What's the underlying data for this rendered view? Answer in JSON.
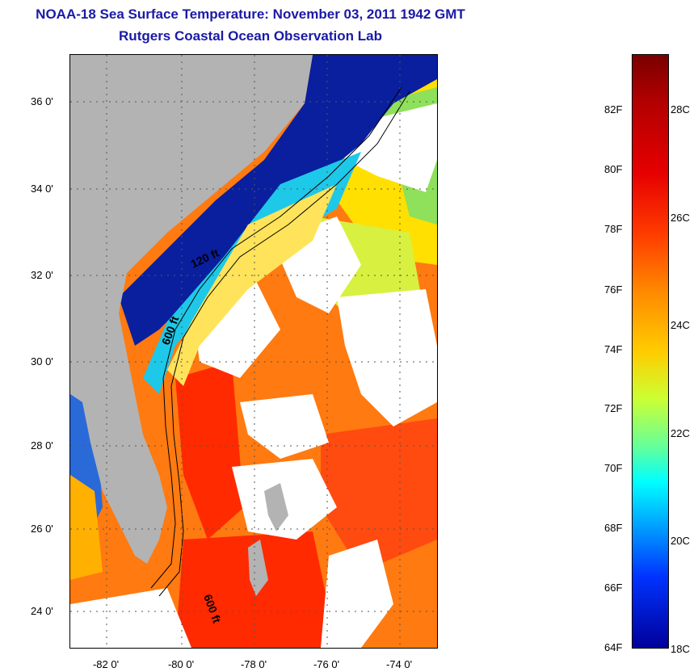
{
  "header": {
    "title": "NOAA-18 Sea Surface Temperature:  November 03, 2011 1942 GMT",
    "subtitle": "Rutgers Coastal Ocean Observation Lab"
  },
  "map": {
    "lat_ticks": [
      "36 0'",
      "34 0'",
      "32 0'",
      "30 0'",
      "28 0'",
      "26 0'",
      "24 0'"
    ],
    "lon_ticks": [
      "-82 0'",
      "-80 0'",
      "-78 0'",
      "-76 0'",
      "-74 0'"
    ],
    "contour_labels": [
      "120 ft",
      "600 ft",
      "600 ft"
    ]
  },
  "colorbar": {
    "fahrenheit": [
      "82F",
      "80F",
      "78F",
      "76F",
      "74F",
      "72F",
      "70F",
      "68F",
      "66F",
      "64F"
    ],
    "celsius": [
      "28C",
      "26C",
      "24C",
      "22C",
      "20C",
      "18C"
    ]
  },
  "colors": {
    "title": "#1a1aa6",
    "land": "#b3b3b3",
    "cloud": "#ffffff",
    "warm": "#ff5a1a",
    "cold": "#0a1f9e"
  }
}
